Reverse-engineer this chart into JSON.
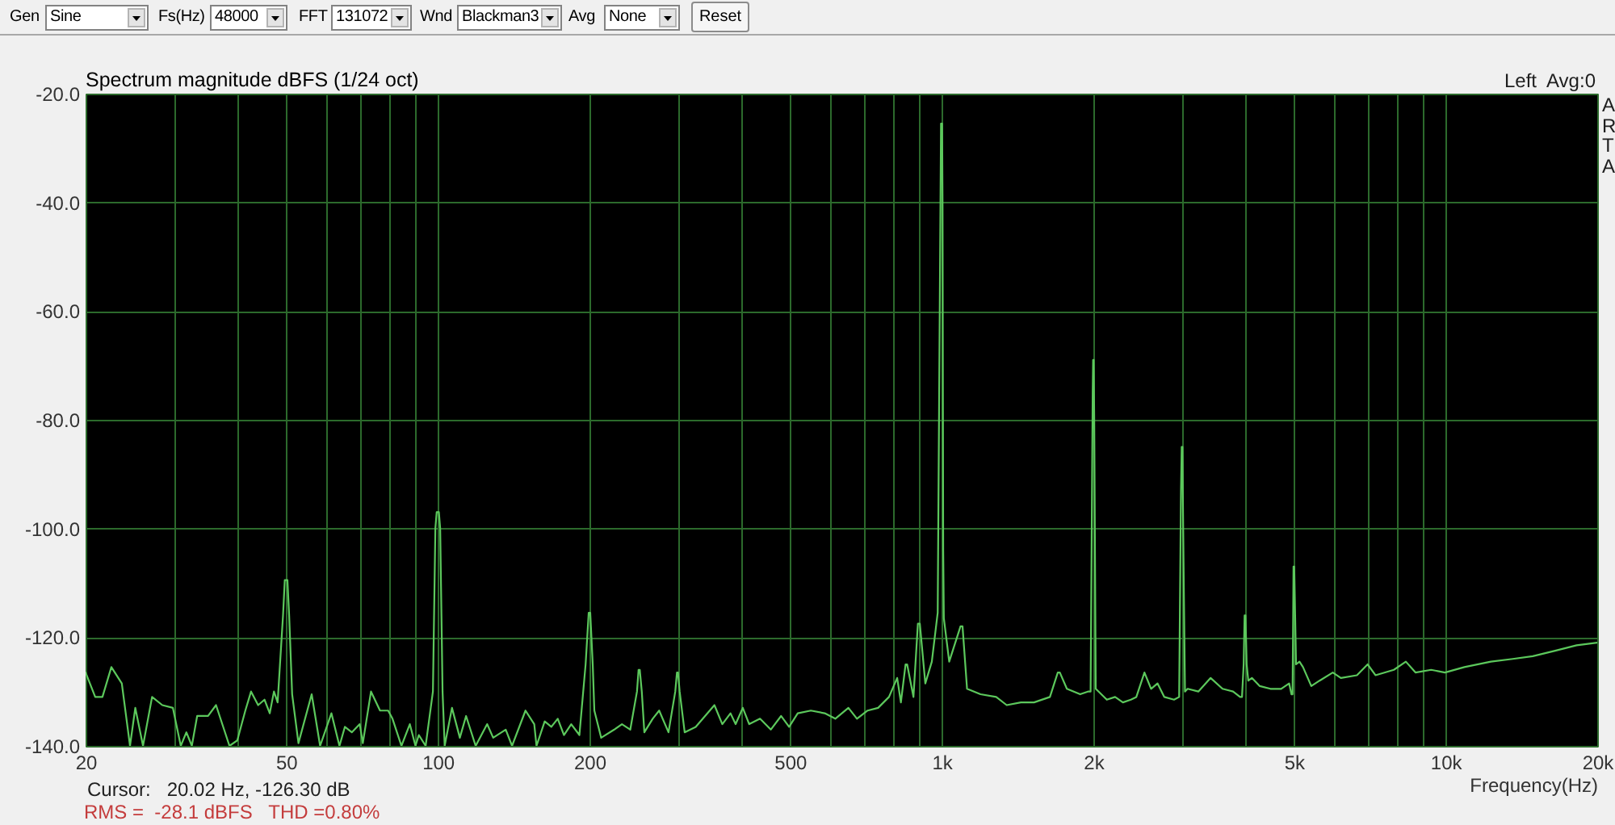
{
  "chart_data": {
    "type": "line",
    "title": "Spectrum magnitude dBFS (1/24 oct)",
    "xlabel": "Frequency(Hz)",
    "annotations": [
      "Gen",
      "Sine",
      "Fs(Hz)",
      "48000",
      "FFT",
      "131072",
      "Wnd",
      "Blackman3",
      "Avg",
      "None",
      "Reset",
      "Left  Avg:0",
      "A",
      "R",
      "T",
      "A",
      "Cursor:   20.02 Hz, -126.30 dB",
      "RMS =  -28.1 dBFS   THD =0.80%"
    ],
    "x": [
      20,
      20.9,
      21.6,
      22.5,
      23.6,
      24.5,
      25.1,
      26.0,
      27.1,
      28.4,
      29.8,
      30.9,
      31.7,
      32.5,
      33.3,
      35.0,
      36.3,
      38.6,
      40.0,
      41.5,
      42.6,
      44.0,
      45.3,
      46.4,
      47.3,
      48.1,
      49.3,
      49.7,
      50.3,
      50.7,
      51.4,
      52.9,
      56.2,
      58.4,
      61.5,
      63.8,
      65.4,
      67.5,
      70.0,
      71.0,
      73.7,
      76.8,
      79.7,
      81.3,
      84.7,
      88.0,
      90.3,
      91.7,
      94.6,
      97.8,
      98.9,
      99.5,
      100.5,
      101.1,
      102.2,
      103.2,
      106.7,
      110.6,
      113.8,
      118.9,
      125.3,
      128.8,
      136.4,
      140.4,
      149.3,
      155.4,
      157,
      163,
      168,
      173,
      178,
      184,
      191,
      196.5,
      199.3,
      200.7,
      203,
      204.5,
      211,
      224,
      232,
      241,
      248.5,
      250.3,
      251.7,
      254,
      257,
      267,
      275,
      287,
      296,
      298.3,
      299.7,
      302,
      309,
      325,
      354,
      367,
      381,
      390,
      403,
      415,
      436,
      458,
      480,
      498,
      518,
      550,
      586,
      615,
      653,
      679,
      713,
      748,
      786,
      816,
      830,
      848,
      854,
      879,
      897,
      905,
      928,
      956,
      982,
      997,
      1002,
      1004,
      1007,
      1010,
      1035,
      1090,
      1100,
      1123,
      1194,
      1283,
      1346,
      1436,
      1525,
      1640,
      1700,
      1716,
      1772,
      1883,
      1951,
      1975,
      1994,
      1998,
      2003,
      2008,
      2022,
      2127,
      2209,
      2289,
      2374,
      2434,
      2526,
      2604,
      2681,
      2766,
      2892,
      2960,
      2985,
      2995,
      3005,
      3015,
      3040,
      3077,
      3231,
      3418,
      3609,
      3787,
      3910,
      3945,
      3975,
      3992,
      4008,
      4030,
      4060,
      4127,
      4279,
      4492,
      4717,
      4893,
      4945,
      4970,
      4985,
      4992,
      5008,
      5020,
      5050,
      5130,
      5213,
      5414,
      5623,
      5973,
      6199,
      6670,
      7004,
      7260,
      7897,
      8341,
      8716,
      9363,
      9971,
      10900,
      12300,
      13600,
      14900,
      16500,
      18200,
      20000
    ],
    "values": [
      -126.5,
      -131,
      -131,
      -125.5,
      -128.5,
      -140,
      -133,
      -140,
      -131,
      -132.5,
      -133,
      -140,
      -137.5,
      -140,
      -134.5,
      -134.5,
      -132.5,
      -140,
      -139,
      -133.5,
      -130,
      -132.5,
      -131.5,
      -134,
      -130,
      -132,
      -116,
      -109.5,
      -109.5,
      -116,
      -130.5,
      -139.5,
      -130.5,
      -140,
      -134,
      -140,
      -136.5,
      -137.5,
      -136,
      -139.5,
      -130,
      -133.5,
      -133.5,
      -135,
      -140,
      -136,
      -140,
      -138,
      -140,
      -130,
      -100,
      -97,
      -97,
      -100,
      -130,
      -140,
      -133,
      -138.5,
      -134.5,
      -140,
      -136,
      -138.5,
      -137,
      -140,
      -133.5,
      -136,
      -140,
      -135.5,
      -136.5,
      -135,
      -138,
      -136,
      -138,
      -125,
      -115.5,
      -115.5,
      -125,
      -133.5,
      -138.5,
      -137,
      -136,
      -137,
      -130,
      -126,
      -126,
      -130,
      -137.5,
      -135,
      -133.5,
      -137.5,
      -130,
      -126.5,
      -126.5,
      -130,
      -137.5,
      -136.5,
      -132.5,
      -136,
      -134,
      -136,
      -133,
      -136,
      -135,
      -137,
      -134.5,
      -136.5,
      -134,
      -133.5,
      -134,
      -135,
      -133,
      -135,
      -133.5,
      -133,
      -131,
      -127.5,
      -132,
      -125,
      -125,
      -131,
      -117.5,
      -117.5,
      -128.5,
      -124.5,
      -115.5,
      -25.5,
      -25.5,
      -40,
      -104,
      -116.5,
      -124.5,
      -118,
      -118,
      -129.5,
      -130.5,
      -131,
      -132.5,
      -132,
      -132,
      -131,
      -126.5,
      -126.5,
      -129.5,
      -130.5,
      -130,
      -130,
      -75,
      -69,
      -69,
      -80,
      -129.5,
      -131.5,
      -131,
      -132,
      -131.5,
      -131,
      -126.5,
      -129.5,
      -128.5,
      -131,
      -131.5,
      -131,
      -93,
      -85,
      -85,
      -100,
      -130,
      -129.5,
      -130,
      -127.5,
      -129.5,
      -130,
      -131,
      -131,
      -125,
      -116,
      -116,
      -125,
      -128,
      -127.5,
      -129,
      -129.5,
      -129.5,
      -128.5,
      -130.5,
      -130.5,
      -115,
      -107,
      -107,
      -112,
      -125,
      -124.5,
      -125.5,
      -129,
      -128,
      -126.5,
      -127.5,
      -127,
      -125,
      -127,
      -126,
      -124.5,
      -126.5,
      -126,
      -126.5,
      -125.5,
      -124.5,
      -124,
      -123.5,
      -122.5,
      -121.5,
      -121
    ],
    "color": "#5cc85c",
    "log": "x",
    "grid": true,
    "xlim": [
      20,
      20000
    ],
    "ylim": [
      -140,
      -20
    ],
    "xticks": [
      20,
      {
        "value": 30,
        "label": null
      },
      {
        "value": 40,
        "label": null
      },
      50,
      {
        "value": 60,
        "label": null
      },
      {
        "value": 70,
        "label": null
      },
      {
        "value": 80,
        "label": null
      },
      {
        "value": 90,
        "label": null
      },
      100,
      200,
      {
        "value": 300,
        "label": null
      },
      {
        "value": 400,
        "label": null
      },
      500,
      {
        "value": 600,
        "label": null
      },
      {
        "value": 700,
        "label": null
      },
      {
        "value": 800,
        "label": null
      },
      {
        "value": 900,
        "label": null
      },
      {
        "value": 1000,
        "label": "1k"
      },
      {
        "value": 2000,
        "label": "2k"
      },
      {
        "value": 3000,
        "label": null
      },
      {
        "value": 4000,
        "label": null
      },
      {
        "value": 5000,
        "label": "5k"
      },
      {
        "value": 6000,
        "label": null
      },
      {
        "value": 7000,
        "label": null
      },
      {
        "value": 8000,
        "label": null
      },
      {
        "value": 9000,
        "label": null
      },
      {
        "value": 10000,
        "label": "10k"
      },
      {
        "value": 20000,
        "label": "20k"
      }
    ],
    "yticks": [
      {
        "value": -20,
        "label": "-20.0"
      },
      {
        "value": -40,
        "label": "-40.0"
      },
      {
        "value": -60,
        "label": "-60.0"
      },
      {
        "value": -80,
        "label": "-80.0"
      },
      {
        "value": -100,
        "label": "-100.0"
      },
      {
        "value": -120,
        "label": "-120.0"
      },
      {
        "value": -140,
        "label": "-140.0"
      }
    ]
  }
}
